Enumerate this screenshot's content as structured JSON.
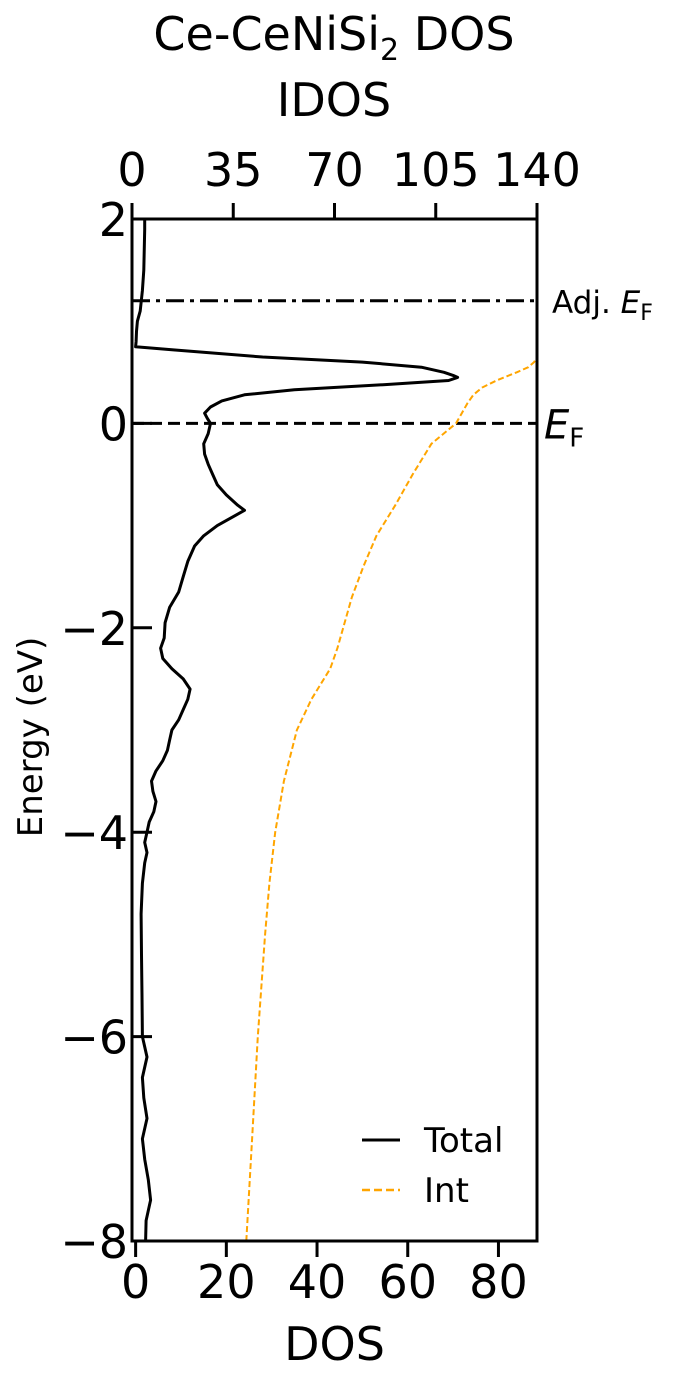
{
  "chart_data": {
    "type": "line",
    "title": "Ce-CeNiSi",
    "title_sub": "2",
    "title_suffix": " DOS",
    "xlabel": "DOS",
    "ylabel": "Energy (eV)",
    "top_xlabel": "IDOS",
    "xlim": [
      -0.8,
      88.5
    ],
    "ylim": [
      -8,
      2
    ],
    "top_xlim": [
      0,
      140
    ],
    "x_ticks": [
      0,
      20,
      40,
      60,
      80
    ],
    "x_tick_labels": [
      "0",
      "20",
      "40",
      "60",
      "80"
    ],
    "y_ticks": [
      -8,
      -6,
      -4,
      -2,
      0,
      2
    ],
    "y_tick_labels": [
      "−8",
      "−6",
      "−4",
      "−2",
      "0",
      "2"
    ],
    "top_x_ticks": [
      0,
      35,
      70,
      105,
      140
    ],
    "top_x_tick_labels": [
      "0",
      "35",
      "70",
      "105",
      "140"
    ],
    "fermi": {
      "energy": 0,
      "label_main": "E",
      "label_sub": "F",
      "style": "dashed"
    },
    "adj_fermi": {
      "energy": 1.2,
      "label_prefix": "Adj. ",
      "label_main": "E",
      "label_sub": "F",
      "style": "dash-dot"
    },
    "legend": {
      "position": "lower-right",
      "entries": [
        {
          "label": "Total",
          "color": "#000000",
          "style": "solid"
        },
        {
          "label": "Int",
          "color": "#ffa500",
          "style": "dashed"
        }
      ]
    },
    "series": [
      {
        "name": "Total",
        "axis": "bottom",
        "color": "#000000",
        "style": "solid",
        "points": [
          [
            2,
            2.0
          ],
          [
            1.9,
            2.0
          ],
          [
            1.5,
            1.8
          ],
          [
            1.3,
            1.5
          ],
          [
            1.1,
            1.0
          ],
          [
            1.0,
            0.4
          ],
          [
            0.9,
            0.2
          ],
          [
            0.8,
            0.1
          ],
          [
            0.75,
            0.0
          ],
          [
            0.72,
            8.0
          ],
          [
            0.65,
            28.0
          ],
          [
            0.6,
            50.0
          ],
          [
            0.55,
            63.0
          ],
          [
            0.5,
            68.0
          ],
          [
            0.47,
            70.0
          ],
          [
            0.45,
            71.0
          ],
          [
            0.42,
            69.0
          ],
          [
            0.38,
            55.0
          ],
          [
            0.33,
            35.0
          ],
          [
            0.28,
            24.0
          ],
          [
            0.22,
            19.0
          ],
          [
            0.16,
            16.5
          ],
          [
            0.1,
            15.2
          ],
          [
            0.05,
            15.8
          ],
          [
            0.0,
            16.5
          ],
          [
            -0.1,
            16.0
          ],
          [
            -0.2,
            15.0
          ],
          [
            -0.3,
            15.2
          ],
          [
            -0.4,
            16.0
          ],
          [
            -0.5,
            17.0
          ],
          [
            -0.6,
            18.0
          ],
          [
            -0.7,
            20.0
          ],
          [
            -0.8,
            22.5
          ],
          [
            -0.85,
            24.0
          ],
          [
            -0.9,
            22.0
          ],
          [
            -1.0,
            18.0
          ],
          [
            -1.1,
            15.0
          ],
          [
            -1.2,
            13.0
          ],
          [
            -1.35,
            11.5
          ],
          [
            -1.5,
            10.5
          ],
          [
            -1.65,
            9.5
          ],
          [
            -1.8,
            7.5
          ],
          [
            -1.95,
            6.5
          ],
          [
            -2.1,
            6.3
          ],
          [
            -2.2,
            5.5
          ],
          [
            -2.3,
            6.0
          ],
          [
            -2.4,
            8.0
          ],
          [
            -2.5,
            10.5
          ],
          [
            -2.6,
            12.0
          ],
          [
            -2.7,
            11.5
          ],
          [
            -2.8,
            10.5
          ],
          [
            -2.9,
            9.5
          ],
          [
            -3.0,
            8.0
          ],
          [
            -3.1,
            7.5
          ],
          [
            -3.2,
            7.0
          ],
          [
            -3.3,
            6.0
          ],
          [
            -3.4,
            4.5
          ],
          [
            -3.5,
            3.5
          ],
          [
            -3.6,
            3.8
          ],
          [
            -3.7,
            4.5
          ],
          [
            -3.8,
            4.0
          ],
          [
            -3.9,
            3.0
          ],
          [
            -4.0,
            2.5
          ],
          [
            -4.1,
            2.0
          ],
          [
            -4.2,
            2.5
          ],
          [
            -4.3,
            2.0
          ],
          [
            -4.5,
            1.5
          ],
          [
            -4.8,
            1.2
          ],
          [
            -5.2,
            1.3
          ],
          [
            -5.6,
            1.4
          ],
          [
            -6.0,
            1.5
          ],
          [
            -6.2,
            2.5
          ],
          [
            -6.4,
            1.5
          ],
          [
            -6.6,
            1.8
          ],
          [
            -6.8,
            2.5
          ],
          [
            -7.0,
            1.5
          ],
          [
            -7.2,
            2.0
          ],
          [
            -7.4,
            2.8
          ],
          [
            -7.6,
            3.3
          ],
          [
            -7.8,
            2.3
          ],
          [
            -8.0,
            2.2
          ]
        ]
      },
      {
        "name": "Int",
        "axis": "top",
        "color": "#ffa500",
        "style": "dashed",
        "points": [
          [
            -8.0,
            39.5
          ],
          [
            -7.0,
            41.5
          ],
          [
            -6.0,
            43.5
          ],
          [
            -5.0,
            46.0
          ],
          [
            -4.5,
            47.5
          ],
          [
            -4.0,
            49.5
          ],
          [
            -3.5,
            52.5
          ],
          [
            -3.0,
            57.0
          ],
          [
            -2.7,
            62.0
          ],
          [
            -2.4,
            68.5
          ],
          [
            -2.2,
            71.0
          ],
          [
            -2.0,
            73.0
          ],
          [
            -1.7,
            76.0
          ],
          [
            -1.4,
            80.0
          ],
          [
            -1.1,
            84.5
          ],
          [
            -0.8,
            91.0
          ],
          [
            -0.5,
            97.0
          ],
          [
            -0.2,
            103.5
          ],
          [
            0.0,
            112.0
          ],
          [
            0.1,
            114.0
          ],
          [
            0.2,
            116.0
          ],
          [
            0.28,
            118.0
          ],
          [
            0.35,
            121.0
          ],
          [
            0.42,
            126.0
          ],
          [
            0.5,
            133.0
          ],
          [
            0.55,
            137.0
          ],
          [
            0.6,
            139.0
          ],
          [
            0.65,
            140.0
          ],
          [
            0.7,
            140.0
          ],
          [
            1.0,
            140.0
          ],
          [
            1.5,
            140.0
          ],
          [
            2.0,
            140.0
          ]
        ]
      }
    ]
  }
}
